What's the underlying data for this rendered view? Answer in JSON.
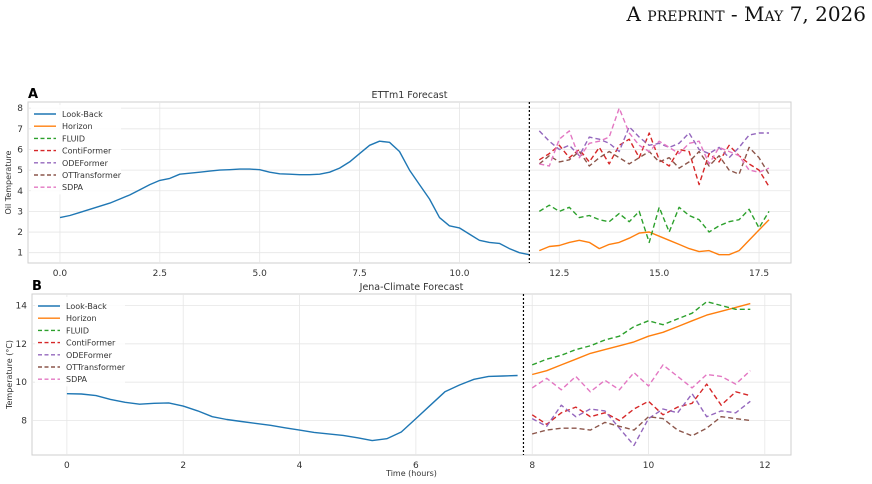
{
  "header": {
    "text": "A preprint - May 7, 2026"
  },
  "chart_data": [
    {
      "type": "line",
      "panel_label": "A",
      "title": "ETTm1 Forecast",
      "xlabel": "",
      "ylabel": "Oil Temperature",
      "xlim": [
        -0.8,
        18.3
      ],
      "ylim": [
        0.5,
        8.3
      ],
      "xticks": [
        0,
        2.5,
        5,
        7.5,
        10,
        12.5,
        15,
        17.5
      ],
      "xtick_labels": [
        "0.0",
        "2.5",
        "5.0",
        "7.5",
        "10.0",
        "12.5",
        "15.0",
        "17.5"
      ],
      "yticks": [
        1,
        2,
        3,
        4,
        5,
        6,
        7,
        8
      ],
      "ytick_labels": [
        "1",
        "2",
        "3",
        "4",
        "5",
        "6",
        "7",
        "8"
      ],
      "boundary_x": 11.75,
      "grid": true,
      "legend_position": "top-left",
      "legend": [
        "Look-Back",
        "Horizon",
        "FLUID",
        "ContiFormer",
        "ODEFormer",
        "OTTransformer",
        "SDPA"
      ],
      "series": [
        {
          "name": "Look-Back",
          "color": "#1f77b4",
          "dashed": false,
          "x": [
            0.0,
            0.25,
            0.5,
            0.75,
            1.0,
            1.25,
            1.5,
            1.75,
            2.0,
            2.25,
            2.5,
            2.75,
            3.0,
            3.25,
            3.5,
            3.75,
            4.0,
            4.25,
            4.5,
            4.75,
            5.0,
            5.25,
            5.5,
            5.75,
            6.0,
            6.25,
            6.5,
            6.75,
            7.0,
            7.25,
            7.5,
            7.75,
            8.0,
            8.25,
            8.5,
            8.75,
            9.0,
            9.25,
            9.5,
            9.75,
            10.0,
            10.25,
            10.5,
            10.75,
            11.0,
            11.25,
            11.5,
            11.75
          ],
          "y": [
            2.7,
            2.8,
            2.95,
            3.1,
            3.25,
            3.4,
            3.6,
            3.8,
            4.05,
            4.3,
            4.5,
            4.6,
            4.8,
            4.85,
            4.9,
            4.95,
            5.0,
            5.02,
            5.05,
            5.05,
            5.02,
            4.9,
            4.82,
            4.8,
            4.78,
            4.78,
            4.8,
            4.9,
            5.1,
            5.4,
            5.8,
            6.2,
            6.4,
            6.35,
            5.9,
            5.0,
            4.3,
            3.6,
            2.7,
            2.3,
            2.2,
            1.9,
            1.6,
            1.5,
            1.45,
            1.2,
            1.0,
            0.9
          ]
        },
        {
          "name": "Horizon",
          "color": "#ff7f0e",
          "dashed": false,
          "x": [
            12.0,
            12.25,
            12.5,
            12.75,
            13.0,
            13.25,
            13.5,
            13.75,
            14.0,
            14.25,
            14.5,
            14.75,
            15.0,
            15.25,
            15.5,
            15.75,
            16.0,
            16.25,
            16.5,
            16.75,
            17.0,
            17.25,
            17.5,
            17.75
          ],
          "y": [
            1.1,
            1.3,
            1.35,
            1.5,
            1.6,
            1.5,
            1.2,
            1.4,
            1.5,
            1.7,
            1.95,
            2.0,
            1.8,
            1.6,
            1.4,
            1.2,
            1.05,
            1.1,
            0.9,
            0.9,
            1.1,
            1.6,
            2.1,
            2.6
          ]
        },
        {
          "name": "FLUID",
          "color": "#2ca02c",
          "dashed": true,
          "x": [
            12.0,
            12.25,
            12.5,
            12.75,
            13.0,
            13.25,
            13.5,
            13.75,
            14.0,
            14.25,
            14.5,
            14.75,
            15.0,
            15.25,
            15.5,
            15.75,
            16.0,
            16.25,
            16.5,
            16.75,
            17.0,
            17.25,
            17.5,
            17.75
          ],
          "y": [
            3.0,
            3.3,
            3.0,
            3.2,
            2.7,
            2.8,
            2.6,
            2.5,
            2.9,
            2.5,
            3.0,
            1.5,
            3.2,
            2.0,
            3.2,
            2.8,
            2.6,
            2.0,
            2.3,
            2.5,
            2.6,
            3.1,
            2.2,
            3.0
          ]
        },
        {
          "name": "ContiFormer",
          "color": "#d62728",
          "dashed": true,
          "x": [
            12.0,
            12.25,
            12.5,
            12.75,
            13.0,
            13.25,
            13.5,
            13.75,
            14.0,
            14.25,
            14.5,
            14.75,
            15.0,
            15.25,
            15.5,
            15.75,
            16.0,
            16.25,
            16.5,
            16.75,
            17.0,
            17.25,
            17.5,
            17.75
          ],
          "y": [
            5.5,
            5.8,
            6.2,
            5.6,
            6.0,
            5.4,
            6.1,
            5.3,
            6.2,
            6.5,
            5.6,
            6.8,
            5.5,
            5.2,
            6.0,
            5.9,
            4.3,
            5.8,
            5.4,
            6.2,
            5.7,
            5.3,
            5.0,
            4.2
          ]
        },
        {
          "name": "ODEFormer",
          "color": "#9467bd",
          "dashed": true,
          "x": [
            12.0,
            12.25,
            12.5,
            12.75,
            13.0,
            13.25,
            13.5,
            13.75,
            14.0,
            14.25,
            14.5,
            14.75,
            15.0,
            15.25,
            15.5,
            15.75,
            16.0,
            16.25,
            16.5,
            16.75,
            17.0,
            17.25,
            17.5,
            17.75
          ],
          "y": [
            6.9,
            6.4,
            6.0,
            6.2,
            5.7,
            6.6,
            6.5,
            6.3,
            5.9,
            7.1,
            6.6,
            6.2,
            6.3,
            6.1,
            6.3,
            6.8,
            6.0,
            5.8,
            6.1,
            5.6,
            6.1,
            6.7,
            6.8,
            6.8
          ]
        },
        {
          "name": "OTTransformer",
          "color": "#8c564b",
          "dashed": true,
          "x": [
            12.0,
            12.25,
            12.5,
            12.75,
            13.0,
            13.25,
            13.5,
            13.75,
            14.0,
            14.25,
            14.5,
            14.75,
            15.0,
            15.25,
            15.5,
            15.75,
            16.0,
            16.25,
            16.5,
            16.75,
            17.0,
            17.25,
            17.5,
            17.75
          ],
          "y": [
            5.3,
            5.7,
            5.4,
            5.5,
            5.9,
            5.2,
            5.6,
            5.9,
            5.6,
            5.3,
            5.6,
            5.9,
            5.4,
            5.6,
            5.1,
            5.4,
            5.9,
            5.2,
            5.7,
            5.0,
            4.8,
            6.1,
            5.6,
            4.8
          ]
        },
        {
          "name": "SDPA",
          "color": "#e377c2",
          "dashed": true,
          "x": [
            12.0,
            12.25,
            12.5,
            12.75,
            13.0,
            13.25,
            13.5,
            13.75,
            14.0,
            14.25,
            14.5,
            14.75,
            15.0,
            15.25,
            15.5,
            15.75,
            16.0,
            16.25,
            16.5,
            16.75,
            17.0,
            17.25,
            17.5,
            17.75
          ],
          "y": [
            5.3,
            5.2,
            6.5,
            6.9,
            5.6,
            6.3,
            6.4,
            6.6,
            8.0,
            6.8,
            6.2,
            5.9,
            6.4,
            6.1,
            5.8,
            6.3,
            6.4,
            5.3,
            6.1,
            5.9,
            5.7,
            5.0,
            4.9,
            5.1
          ]
        }
      ]
    },
    {
      "type": "line",
      "panel_label": "B",
      "title": "Jena-Climate Forecast",
      "xlabel": "Time (hours)",
      "ylabel": "Temperature (°C)",
      "xlim": [
        -0.6,
        12.45
      ],
      "ylim": [
        6.2,
        14.6
      ],
      "xticks": [
        0,
        2,
        4,
        6,
        8,
        10,
        12
      ],
      "xtick_labels": [
        "0",
        "2",
        "4",
        "6",
        "8",
        "10",
        "12"
      ],
      "yticks": [
        8,
        10,
        12,
        14
      ],
      "ytick_labels": [
        "8",
        "10",
        "12",
        "14"
      ],
      "boundary_x": 7.85,
      "grid": true,
      "legend_position": "top-left",
      "legend": [
        "Look-Back",
        "Horizon",
        "FLUID",
        "ContiFormer",
        "ODEFormer",
        "OTTransformer",
        "SDPA"
      ],
      "series": [
        {
          "name": "Look-Back",
          "color": "#1f77b4",
          "dashed": false,
          "x": [
            0.0,
            0.25,
            0.5,
            0.75,
            1.0,
            1.25,
            1.5,
            1.75,
            2.0,
            2.25,
            2.5,
            2.75,
            3.0,
            3.25,
            3.5,
            3.75,
            4.0,
            4.25,
            4.5,
            4.75,
            5.0,
            5.25,
            5.5,
            5.75,
            6.0,
            6.25,
            6.5,
            6.75,
            7.0,
            7.25,
            7.5,
            7.75
          ],
          "y": [
            9.4,
            9.38,
            9.3,
            9.1,
            8.95,
            8.85,
            8.9,
            8.92,
            8.75,
            8.5,
            8.2,
            8.05,
            7.95,
            7.85,
            7.75,
            7.62,
            7.5,
            7.38,
            7.3,
            7.22,
            7.1,
            6.95,
            7.05,
            7.4,
            8.1,
            8.8,
            9.5,
            9.85,
            10.15,
            10.3,
            10.32,
            10.35
          ]
        },
        {
          "name": "Horizon",
          "color": "#ff7f0e",
          "dashed": false,
          "x": [
            8.0,
            8.25,
            8.5,
            8.75,
            9.0,
            9.25,
            9.5,
            9.75,
            10.0,
            10.25,
            10.5,
            10.75,
            11.0,
            11.25,
            11.5,
            11.75
          ],
          "y": [
            10.4,
            10.6,
            10.9,
            11.2,
            11.5,
            11.7,
            11.9,
            12.1,
            12.4,
            12.6,
            12.9,
            13.2,
            13.5,
            13.7,
            13.9,
            14.1
          ]
        },
        {
          "name": "FLUID",
          "color": "#2ca02c",
          "dashed": true,
          "x": [
            8.0,
            8.25,
            8.5,
            8.75,
            9.0,
            9.25,
            9.5,
            9.75,
            10.0,
            10.25,
            10.5,
            10.75,
            11.0,
            11.25,
            11.5,
            11.75
          ],
          "y": [
            10.9,
            11.2,
            11.4,
            11.7,
            11.9,
            12.2,
            12.4,
            12.9,
            13.2,
            13.0,
            13.3,
            13.6,
            14.2,
            14.0,
            13.8,
            13.8
          ]
        },
        {
          "name": "ContiFormer",
          "color": "#d62728",
          "dashed": true,
          "x": [
            8.0,
            8.25,
            8.5,
            8.75,
            9.0,
            9.25,
            9.5,
            9.75,
            10.0,
            10.25,
            10.5,
            10.75,
            11.0,
            11.25,
            11.5,
            11.75
          ],
          "y": [
            8.3,
            7.8,
            8.4,
            8.7,
            8.2,
            8.4,
            8.0,
            8.6,
            9.0,
            8.3,
            8.7,
            8.9,
            9.9,
            8.8,
            9.5,
            9.3
          ]
        },
        {
          "name": "ODEFormer",
          "color": "#9467bd",
          "dashed": true,
          "x": [
            8.0,
            8.25,
            8.5,
            8.75,
            9.0,
            9.25,
            9.5,
            9.75,
            10.0,
            10.25,
            10.5,
            10.75,
            11.0,
            11.25,
            11.5,
            11.75
          ],
          "y": [
            8.1,
            7.7,
            8.8,
            8.2,
            8.6,
            8.5,
            7.6,
            6.7,
            8.1,
            8.6,
            8.4,
            9.4,
            8.2,
            8.5,
            8.4,
            9.0
          ]
        },
        {
          "name": "OTTransformer",
          "color": "#8c564b",
          "dashed": true,
          "x": [
            8.0,
            8.25,
            8.5,
            8.75,
            9.0,
            9.25,
            9.5,
            9.75,
            10.0,
            10.25,
            10.5,
            10.75,
            11.0,
            11.25,
            11.5,
            11.75
          ],
          "y": [
            7.3,
            7.5,
            7.6,
            7.6,
            7.5,
            7.9,
            7.7,
            7.5,
            8.2,
            8.1,
            7.5,
            7.2,
            7.6,
            8.2,
            8.1,
            8.0
          ]
        },
        {
          "name": "SDPA",
          "color": "#e377c2",
          "dashed": true,
          "x": [
            8.0,
            8.25,
            8.5,
            8.75,
            9.0,
            9.25,
            9.5,
            9.75,
            10.0,
            10.25,
            10.5,
            10.75,
            11.0,
            11.25,
            11.5,
            11.75
          ],
          "y": [
            9.7,
            10.2,
            9.6,
            10.3,
            9.5,
            10.1,
            9.6,
            10.5,
            9.8,
            10.9,
            10.3,
            9.7,
            10.4,
            10.3,
            9.9,
            10.6
          ]
        }
      ]
    }
  ]
}
